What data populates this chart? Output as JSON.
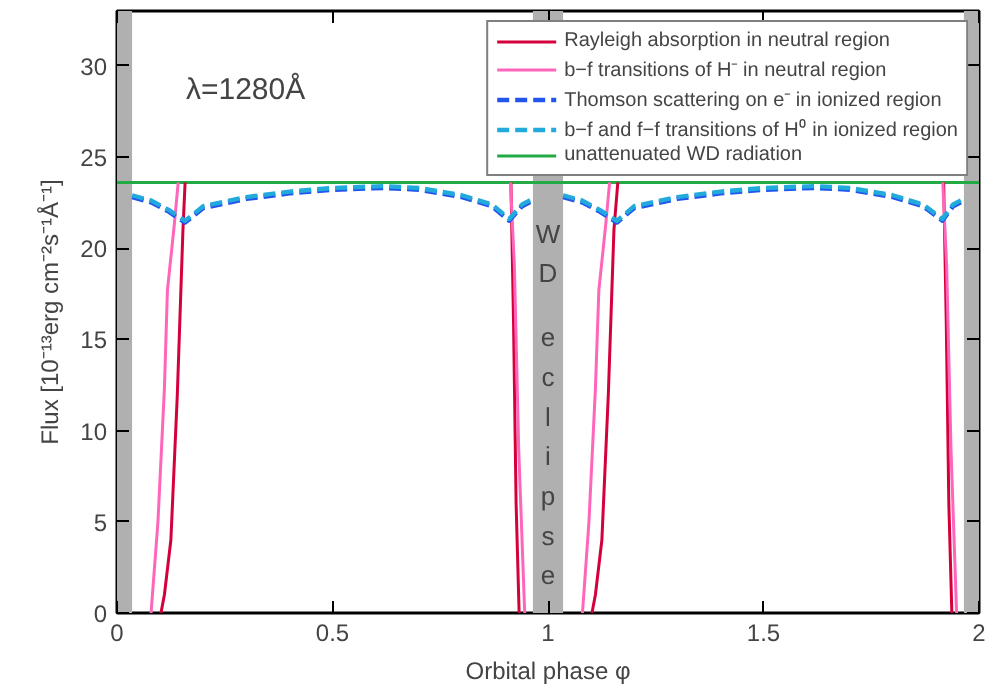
{
  "chart_data": {
    "type": "line",
    "xlabel": "Orbital phase φ",
    "ylabel": "Flux [10⁻¹³erg cm⁻²s⁻¹Å⁻¹]",
    "annotations": [
      "λ=1280Å"
    ],
    "xlim": [
      0,
      2
    ],
    "ylim": [
      0,
      33
    ],
    "xticks": [
      0,
      0.5,
      1,
      1.5,
      2
    ],
    "yticks": [
      0,
      5,
      10,
      15,
      20,
      25,
      30
    ],
    "grid": false,
    "legend": "top right",
    "marker": "none",
    "bands": [
      {
        "axis": "x",
        "from": 0,
        "to": 0.035,
        "label": null,
        "color": "#b0b0b0"
      },
      {
        "axis": "x",
        "from": 0.965,
        "to": 1.035,
        "label": "WD eclipse",
        "color": "#b0b0b0"
      },
      {
        "axis": "x",
        "from": 1.965,
        "to": 2,
        "label": null,
        "color": "#b0b0b0"
      }
    ],
    "series": [
      {
        "name": "Rayleigh absorption in neutral region",
        "color": "#d4003c",
        "line_style": "solid",
        "x": [
          0.102,
          0.11,
          0.125,
          0.14,
          0.153,
          0.158,
          null,
          0.914,
          0.92,
          0.926,
          0.933,
          null,
          1.102,
          1.11,
          1.125,
          1.14,
          1.153,
          1.162,
          null,
          1.918,
          1.924,
          1.93,
          1.937
        ],
        "values": [
          0,
          1,
          4,
          12,
          21,
          23.6,
          null,
          23.6,
          16,
          6,
          0,
          null,
          0,
          1,
          4,
          12,
          21,
          23.6,
          null,
          23.6,
          16,
          6,
          0
        ]
      },
      {
        "name": "b−f transitions of H⁻ in neutral region",
        "color": "#ff66bb",
        "line_style": "solid",
        "x": [
          0.079,
          0.095,
          0.11,
          0.117,
          0.133,
          0.142,
          null,
          0.913,
          0.922,
          0.932,
          0.946,
          null,
          1.08,
          1.095,
          1.11,
          1.118,
          1.134,
          1.143,
          null,
          1.916,
          1.925,
          1.935,
          1.948
        ],
        "values": [
          0,
          5,
          12.3,
          17.7,
          21.3,
          23.6,
          null,
          23.6,
          19,
          9,
          0,
          null,
          0,
          5,
          12.3,
          17.7,
          21.3,
          23.6,
          null,
          23.6,
          19,
          9,
          0
        ]
      },
      {
        "name": "Thomson scattering on e⁻ in ionized region",
        "color": "#2255ee",
        "line_style": "dashed",
        "x": [
          0.035,
          0.08,
          0.12,
          0.158,
          0.2,
          0.3,
          0.4,
          0.5,
          0.62,
          0.7,
          0.8,
          0.87,
          0.91,
          0.94,
          0.965,
          null,
          1.035,
          1.08,
          1.12,
          1.16,
          1.2,
          1.3,
          1.4,
          1.5,
          1.62,
          1.7,
          1.8,
          1.87,
          1.915,
          1.94,
          1.965
        ],
        "values": [
          22.8,
          22.5,
          22.0,
          21.4,
          22.2,
          22.7,
          23.0,
          23.2,
          23.3,
          23.2,
          22.8,
          22.3,
          21.5,
          22.3,
          22.6,
          null,
          22.8,
          22.5,
          22.0,
          21.4,
          22.2,
          22.7,
          23.0,
          23.2,
          23.3,
          23.2,
          22.8,
          22.3,
          21.5,
          22.3,
          22.6
        ]
      },
      {
        "name": "b−f and f−f transitions of H⁰ in ionized region",
        "color": "#22aadd",
        "line_style": "dashed",
        "x": [
          0.035,
          0.08,
          0.12,
          0.158,
          0.2,
          0.3,
          0.4,
          0.5,
          0.62,
          0.7,
          0.8,
          0.87,
          0.91,
          0.94,
          0.965,
          null,
          1.035,
          1.08,
          1.12,
          1.16,
          1.2,
          1.3,
          1.4,
          1.5,
          1.62,
          1.7,
          1.8,
          1.87,
          1.915,
          1.94,
          1.965
        ],
        "values": [
          22.9,
          22.6,
          22.1,
          21.5,
          22.3,
          22.8,
          23.1,
          23.3,
          23.4,
          23.3,
          22.9,
          22.4,
          21.6,
          22.4,
          22.7,
          null,
          22.9,
          22.6,
          22.1,
          21.5,
          22.3,
          22.8,
          23.1,
          23.3,
          23.4,
          23.3,
          22.9,
          22.4,
          21.6,
          22.4,
          22.7
        ]
      },
      {
        "name": "unattenuated WD radiation",
        "color": "#22aa44",
        "line_style": "solid",
        "x": [
          0,
          2
        ],
        "values": [
          23.6,
          23.6
        ]
      }
    ]
  }
}
